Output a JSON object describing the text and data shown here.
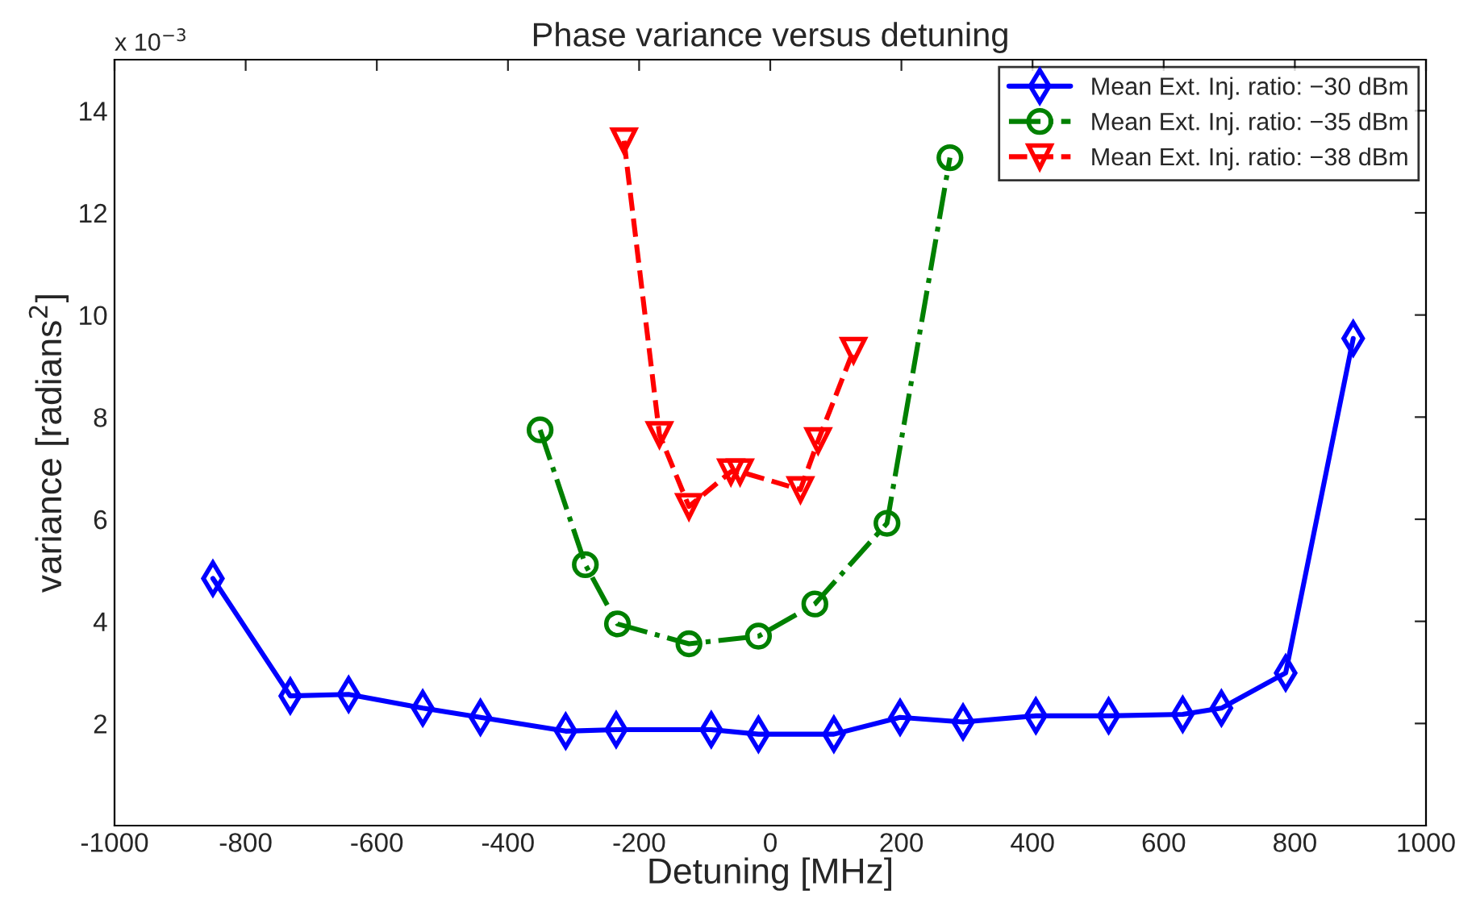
{
  "chart_data": {
    "type": "line",
    "title": "Phase variance versus detuning",
    "xlabel": "Detuning [MHz]",
    "ylabel": "variance [radians$^{2}$]",
    "annotations": [
      "x 10$^{−3}$"
    ],
    "xlim": [
      -1000,
      1000
    ],
    "xticks": [
      -1000,
      -800,
      -600,
      -400,
      -200,
      0,
      200,
      400,
      600,
      800,
      1000
    ],
    "ylim": [
      0,
      15
    ],
    "yticks": [
      2,
      4,
      6,
      8,
      10,
      12,
      14
    ],
    "grid": false,
    "legend": "top right",
    "series": [
      {
        "name": "Mean Ext. Inj. ratio: −30 dBm",
        "color": "#0000ff",
        "marker": "diamond",
        "line_style": "solid",
        "x": [
          -850,
          -732,
          -643,
          -530,
          -442,
          -312,
          -235,
          -90,
          -18,
          97,
          198,
          294,
          405,
          516,
          629,
          688,
          786,
          889
        ],
        "values": [
          4.84,
          2.54,
          2.57,
          2.3,
          2.12,
          1.85,
          1.88,
          1.88,
          1.79,
          1.79,
          2.12,
          2.03,
          2.15,
          2.15,
          2.18,
          2.3,
          2.99,
          9.54
        ]
      },
      {
        "name": "Mean Ext. Inj. ratio: −35 dBm",
        "color": "#008000",
        "marker": "circle",
        "line_style": "dashdot",
        "x": [
          -351,
          -282,
          -233,
          -124,
          -18,
          68,
          178,
          274
        ],
        "values": [
          7.75,
          5.11,
          3.95,
          3.56,
          3.71,
          4.34,
          5.92,
          13.08
        ]
      },
      {
        "name": "Mean Ext. Inj. ratio: −38 dBm",
        "color": "#ff0000",
        "marker": "triangle",
        "line_style": "dashed",
        "x": [
          -223,
          -169,
          -124,
          -60,
          -46,
          46,
          73,
          127
        ],
        "values": [
          13.41,
          7.66,
          6.25,
          6.93,
          6.93,
          6.58,
          7.54,
          9.31
        ]
      }
    ]
  }
}
